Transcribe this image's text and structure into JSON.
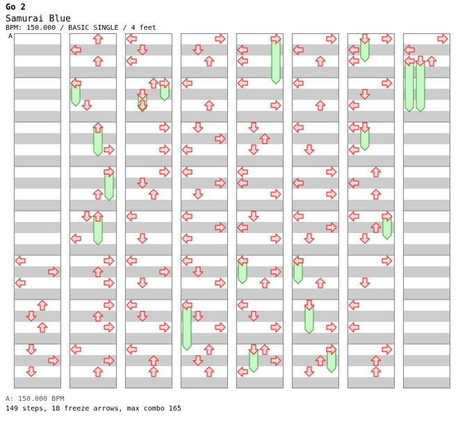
{
  "header": {
    "title": "Go 2",
    "song": "Samurai Blue",
    "meta": "BPM: 150.000 / BASIC SINGLE / 4 feet"
  },
  "marker": {
    "label": "A"
  },
  "footer": {
    "bpm_line": "A: 150.000 BPM",
    "stats_line": "149 steps, 18 freeze arrows, max combo 165"
  },
  "colors": {
    "stripe": "#cccccc",
    "bar_line": "#808080",
    "arrow_fill": "#ffd8d8",
    "arrow_stroke": "#e03030",
    "freeze_fill": "#c8f8c8",
    "freeze_stroke": "#30a030"
  },
  "chart_data": {
    "type": "step-chart",
    "columns": 8,
    "measures_per_column": 8,
    "lanes": [
      "left",
      "down",
      "up",
      "right"
    ],
    "notes": [
      {
        "c": 0,
        "m": 5,
        "r": 0,
        "l": "left"
      },
      {
        "c": 0,
        "m": 5,
        "r": 0.5,
        "l": "right"
      },
      {
        "c": 0,
        "m": 5,
        "r": 1,
        "l": "left"
      },
      {
        "c": 0,
        "m": 6,
        "r": 0,
        "l": "up"
      },
      {
        "c": 0,
        "m": 6,
        "r": 0.5,
        "l": "down"
      },
      {
        "c": 0,
        "m": 6,
        "r": 1,
        "l": "up"
      },
      {
        "c": 0,
        "m": 7,
        "r": 0,
        "l": "down"
      },
      {
        "c": 0,
        "m": 7,
        "r": 0.5,
        "l": "right"
      },
      {
        "c": 0,
        "m": 7,
        "r": 1,
        "l": "down"
      },
      {
        "c": 1,
        "m": 0,
        "r": 0,
        "l": "up"
      },
      {
        "c": 1,
        "m": 0,
        "r": 0.5,
        "l": "left"
      },
      {
        "c": 1,
        "m": 0,
        "r": 1,
        "l": "up"
      },
      {
        "c": 1,
        "m": 1,
        "r": 0,
        "l": "left"
      },
      {
        "c": 1,
        "m": 1,
        "r": 1,
        "l": "down"
      },
      {
        "c": 1,
        "m": 2,
        "r": 0,
        "l": "up"
      },
      {
        "c": 1,
        "m": 2,
        "r": 1,
        "l": "right"
      },
      {
        "c": 1,
        "m": 3,
        "r": 0,
        "l": "right"
      },
      {
        "c": 1,
        "m": 3,
        "r": 1,
        "l": "up"
      },
      {
        "c": 1,
        "m": 4,
        "r": 0,
        "l": "down"
      },
      {
        "c": 1,
        "m": 4,
        "r": 1,
        "l": "left"
      },
      {
        "c": 1,
        "m": 5,
        "r": 0,
        "l": "right"
      },
      {
        "c": 1,
        "m": 5,
        "r": 0.5,
        "l": "up"
      },
      {
        "c": 1,
        "m": 5,
        "r": 1,
        "l": "right"
      },
      {
        "c": 1,
        "m": 6,
        "r": 0,
        "l": "right"
      },
      {
        "c": 1,
        "m": 6,
        "r": 0.5,
        "l": "up"
      },
      {
        "c": 1,
        "m": 6,
        "r": 1,
        "l": "right"
      },
      {
        "c": 1,
        "m": 7,
        "r": 0,
        "l": "left"
      },
      {
        "c": 1,
        "m": 7,
        "r": 0.5,
        "l": "right"
      },
      {
        "c": 1,
        "m": 7,
        "r": 1,
        "l": "up"
      },
      {
        "c": 2,
        "m": 0,
        "r": 0,
        "l": "left"
      },
      {
        "c": 2,
        "m": 0,
        "r": 0.5,
        "l": "down"
      },
      {
        "c": 2,
        "m": 0,
        "r": 1,
        "l": "left"
      },
      {
        "c": 2,
        "m": 1,
        "r": 0,
        "l": "up"
      },
      {
        "c": 2,
        "m": 1,
        "r": 1,
        "l": "down"
      },
      {
        "c": 2,
        "m": 2,
        "r": 0,
        "l": "right"
      },
      {
        "c": 2,
        "m": 2,
        "r": 1,
        "l": "right"
      },
      {
        "c": 2,
        "m": 3,
        "r": 0,
        "l": "right"
      },
      {
        "c": 2,
        "m": 3,
        "r": 0.5,
        "l": "down"
      },
      {
        "c": 2,
        "m": 3,
        "r": 1,
        "l": "up"
      },
      {
        "c": 2,
        "m": 4,
        "r": 0,
        "l": "left"
      },
      {
        "c": 2,
        "m": 4,
        "r": 1,
        "l": "down"
      },
      {
        "c": 2,
        "m": 5,
        "r": 0,
        "l": "left"
      },
      {
        "c": 2,
        "m": 5,
        "r": 0.5,
        "l": "right"
      },
      {
        "c": 2,
        "m": 5,
        "r": 1,
        "l": "down"
      },
      {
        "c": 2,
        "m": 6,
        "r": 0,
        "l": "left"
      },
      {
        "c": 2,
        "m": 6,
        "r": 0.5,
        "l": "down"
      },
      {
        "c": 2,
        "m": 6,
        "r": 1,
        "l": "right"
      },
      {
        "c": 2,
        "m": 7,
        "r": 0,
        "l": "left"
      },
      {
        "c": 2,
        "m": 7,
        "r": 0.5,
        "l": "up"
      },
      {
        "c": 2,
        "m": 7,
        "r": 1,
        "l": "up"
      },
      {
        "c": 3,
        "m": 0,
        "r": 0,
        "l": "right"
      },
      {
        "c": 3,
        "m": 0,
        "r": 0.5,
        "l": "down"
      },
      {
        "c": 3,
        "m": 0,
        "r": 1,
        "l": "up"
      },
      {
        "c": 3,
        "m": 1,
        "r": 0,
        "l": "left"
      },
      {
        "c": 3,
        "m": 1,
        "r": 1,
        "l": "up"
      },
      {
        "c": 3,
        "m": 2,
        "r": 0,
        "l": "down"
      },
      {
        "c": 3,
        "m": 2,
        "r": 0.5,
        "l": "right"
      },
      {
        "c": 3,
        "m": 2,
        "r": 1,
        "l": "left"
      },
      {
        "c": 3,
        "m": 3,
        "r": 0,
        "l": "left"
      },
      {
        "c": 3,
        "m": 3,
        "r": 0.5,
        "l": "right"
      },
      {
        "c": 3,
        "m": 3,
        "r": 1,
        "l": "down"
      },
      {
        "c": 3,
        "m": 4,
        "r": 0,
        "l": "left"
      },
      {
        "c": 3,
        "m": 4,
        "r": 0.5,
        "l": "right"
      },
      {
        "c": 3,
        "m": 4,
        "r": 1,
        "l": "left"
      },
      {
        "c": 3,
        "m": 5,
        "r": 0,
        "l": "left"
      },
      {
        "c": 3,
        "m": 5,
        "r": 0.5,
        "l": "down"
      },
      {
        "c": 3,
        "m": 5,
        "r": 1,
        "l": "right"
      },
      {
        "c": 3,
        "m": 6,
        "r": 0.5,
        "l": "down"
      },
      {
        "c": 3,
        "m": 6,
        "r": 1,
        "l": "right"
      },
      {
        "c": 3,
        "m": 7,
        "r": 0,
        "l": "up"
      },
      {
        "c": 3,
        "m": 7,
        "r": 0.5,
        "l": "down"
      },
      {
        "c": 3,
        "m": 7,
        "r": 1,
        "l": "up"
      },
      {
        "c": 4,
        "m": 0,
        "r": 0.5,
        "l": "left"
      },
      {
        "c": 4,
        "m": 0,
        "r": 1,
        "l": "left"
      },
      {
        "c": 4,
        "m": 1,
        "r": 0,
        "l": "left"
      },
      {
        "c": 4,
        "m": 1,
        "r": 1,
        "l": "right"
      },
      {
        "c": 4,
        "m": 2,
        "r": 0,
        "l": "down"
      },
      {
        "c": 4,
        "m": 2,
        "r": 0.5,
        "l": "up"
      },
      {
        "c": 4,
        "m": 2,
        "r": 1,
        "l": "down"
      },
      {
        "c": 4,
        "m": 3,
        "r": 0,
        "l": "left"
      },
      {
        "c": 4,
        "m": 3,
        "r": 0.5,
        "l": "left"
      },
      {
        "c": 4,
        "m": 3,
        "r": 1,
        "l": "right"
      },
      {
        "c": 4,
        "m": 4,
        "r": 0,
        "l": "down"
      },
      {
        "c": 4,
        "m": 4,
        "r": 0.5,
        "l": "left"
      },
      {
        "c": 4,
        "m": 4,
        "r": 1,
        "l": "right"
      },
      {
        "c": 4,
        "m": 5,
        "r": 0,
        "l": "left"
      },
      {
        "c": 4,
        "m": 5,
        "r": 0.5,
        "l": "right"
      },
      {
        "c": 4,
        "m": 5,
        "r": 1,
        "l": "up"
      },
      {
        "c": 4,
        "m": 6,
        "r": 0,
        "l": "left"
      },
      {
        "c": 4,
        "m": 6,
        "r": 0.5,
        "l": "down"
      },
      {
        "c": 4,
        "m": 6,
        "r": 1,
        "l": "right"
      },
      {
        "c": 4,
        "m": 7,
        "r": 0,
        "l": "up"
      },
      {
        "c": 4,
        "m": 7,
        "r": 0.5,
        "l": "right"
      },
      {
        "c": 4,
        "m": 7,
        "r": 1,
        "l": "left"
      },
      {
        "c": 5,
        "m": 0,
        "r": 0,
        "l": "right"
      },
      {
        "c": 5,
        "m": 0,
        "r": 0.5,
        "l": "left"
      },
      {
        "c": 5,
        "m": 0,
        "r": 1,
        "l": "up"
      },
      {
        "c": 5,
        "m": 1,
        "r": 0,
        "l": "left"
      },
      {
        "c": 5,
        "m": 1,
        "r": 1,
        "l": "up"
      },
      {
        "c": 5,
        "m": 2,
        "r": 0,
        "l": "left"
      },
      {
        "c": 5,
        "m": 2,
        "r": 1,
        "l": "down"
      },
      {
        "c": 5,
        "m": 3,
        "r": 0,
        "l": "right"
      },
      {
        "c": 5,
        "m": 3,
        "r": 0.5,
        "l": "left"
      },
      {
        "c": 5,
        "m": 3,
        "r": 1,
        "l": "right"
      },
      {
        "c": 5,
        "m": 4,
        "r": 0,
        "l": "left"
      },
      {
        "c": 5,
        "m": 4,
        "r": 0.5,
        "l": "right"
      },
      {
        "c": 5,
        "m": 4,
        "r": 1,
        "l": "down"
      },
      {
        "c": 5,
        "m": 5,
        "r": 0,
        "l": "left"
      },
      {
        "c": 5,
        "m": 5,
        "r": 1,
        "l": "up"
      },
      {
        "c": 5,
        "m": 6,
        "r": 0,
        "l": "down"
      },
      {
        "c": 5,
        "m": 6,
        "r": 1,
        "l": "right"
      },
      {
        "c": 5,
        "m": 7,
        "r": 0,
        "l": "right"
      },
      {
        "c": 5,
        "m": 7,
        "r": 0.5,
        "l": "up"
      },
      {
        "c": 5,
        "m": 7,
        "r": 1,
        "l": "down"
      },
      {
        "c": 6,
        "m": 0,
        "r": 0,
        "l": "right"
      },
      {
        "c": 6,
        "m": 0,
        "r": 0.5,
        "l": "left"
      },
      {
        "c": 6,
        "m": 0,
        "r": 1,
        "l": "left"
      },
      {
        "c": 6,
        "m": 1,
        "r": 0,
        "l": "right"
      },
      {
        "c": 6,
        "m": 1,
        "r": 0.5,
        "l": "down"
      },
      {
        "c": 6,
        "m": 1,
        "r": 1,
        "l": "left"
      },
      {
        "c": 6,
        "m": 2,
        "r": 0,
        "l": "left"
      },
      {
        "c": 6,
        "m": 2,
        "r": 1,
        "l": "left"
      },
      {
        "c": 6,
        "m": 3,
        "r": 0,
        "l": "up"
      },
      {
        "c": 6,
        "m": 3,
        "r": 0.5,
        "l": "left"
      },
      {
        "c": 6,
        "m": 3,
        "r": 1,
        "l": "up"
      },
      {
        "c": 6,
        "m": 4,
        "r": 0,
        "l": "left"
      },
      {
        "c": 6,
        "m": 4,
        "r": 0.5,
        "l": "up"
      },
      {
        "c": 6,
        "m": 4,
        "r": 1,
        "l": "down"
      },
      {
        "c": 6,
        "m": 5,
        "r": 0,
        "l": "right"
      },
      {
        "c": 6,
        "m": 5,
        "r": 1,
        "l": "down"
      },
      {
        "c": 6,
        "m": 6,
        "r": 0,
        "l": "left"
      },
      {
        "c": 6,
        "m": 6,
        "r": 1,
        "l": "left"
      },
      {
        "c": 6,
        "m": 7,
        "r": 0,
        "l": "right"
      },
      {
        "c": 6,
        "m": 7,
        "r": 0.5,
        "l": "up"
      },
      {
        "c": 6,
        "m": 7,
        "r": 1,
        "l": "up"
      },
      {
        "c": 7,
        "m": 0,
        "r": 0,
        "l": "right"
      },
      {
        "c": 7,
        "m": 0,
        "r": 0.5,
        "l": "left"
      },
      {
        "c": 7,
        "m": 0,
        "r": 1,
        "l": "up"
      }
    ],
    "freezes": [
      {
        "c": 1,
        "m": 1,
        "r0": 0,
        "r1": 0.75,
        "l": "left"
      },
      {
        "c": 1,
        "m": 2,
        "r0": 0,
        "r1": 1,
        "l": "up"
      },
      {
        "c": 1,
        "m": 3,
        "r0": 0,
        "r1": 1,
        "l": "right"
      },
      {
        "c": 1,
        "m": 4,
        "r0": 0,
        "r1": 1,
        "l": "up"
      },
      {
        "c": 2,
        "m": 1,
        "r0": 0,
        "r1": 0.5,
        "l": "right"
      },
      {
        "c": 2,
        "m": 1,
        "r0": 0.5,
        "r1": 1,
        "l": "down"
      },
      {
        "c": 3,
        "m": 6,
        "r0": 0,
        "r1": 1.75,
        "l": "left"
      },
      {
        "c": 4,
        "m": 0,
        "r0": 0,
        "r1": 1.75,
        "l": "right"
      },
      {
        "c": 4,
        "m": 5,
        "r0": 0,
        "r1": 0.75,
        "l": "left"
      },
      {
        "c": 4,
        "m": 7,
        "r0": 0,
        "r1": 0.75,
        "l": "down"
      },
      {
        "c": 5,
        "m": 5,
        "r0": 0,
        "r1": 0.75,
        "l": "left"
      },
      {
        "c": 5,
        "m": 6,
        "r0": 0,
        "r1": 1,
        "l": "down"
      },
      {
        "c": 5,
        "m": 7,
        "r0": 0,
        "r1": 0.75,
        "l": "right"
      },
      {
        "c": 6,
        "m": 0,
        "r0": 0,
        "r1": 0.75,
        "l": "down"
      },
      {
        "c": 6,
        "m": 2,
        "r0": 0,
        "r1": 0.75,
        "l": "down"
      },
      {
        "c": 6,
        "m": 4,
        "r0": 0,
        "r1": 0.75,
        "l": "right"
      },
      {
        "c": 7,
        "m": 0,
        "r0": 1,
        "r1": 3,
        "l": "left"
      },
      {
        "c": 7,
        "m": 0,
        "r0": 1,
        "r1": 3,
        "l": "down"
      }
    ]
  }
}
